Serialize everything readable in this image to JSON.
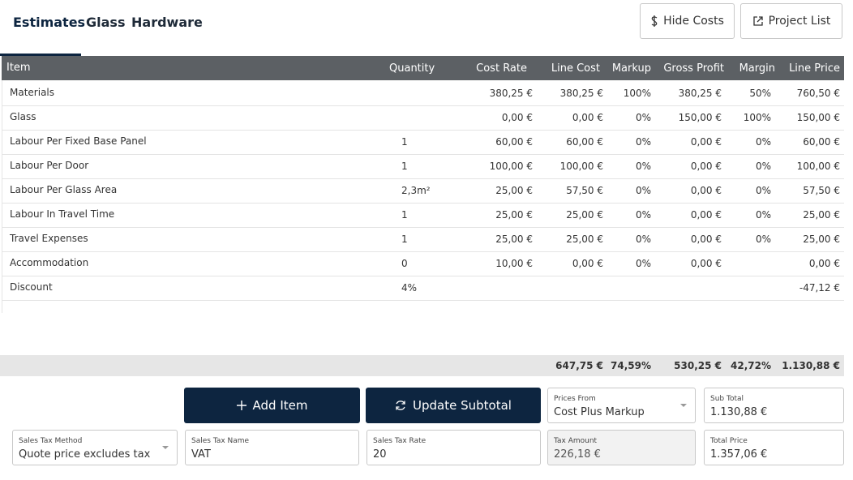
{
  "tabs": [
    "Estimates",
    "Glass",
    "Hardware"
  ],
  "buttons": {
    "hide_costs": "Hide Costs",
    "project_list": "Project List",
    "add_item": "Add Item",
    "update_subtotal": "Update Subtotal"
  },
  "table": {
    "headers": [
      "Item",
      "Quantity",
      "Cost Rate",
      "Line Cost",
      "Markup",
      "Gross Profit",
      "Margin",
      "Line Price"
    ],
    "rows": [
      [
        "Materials",
        null,
        "380,25 €",
        "380,25 €",
        "100%",
        "380,25 €",
        "50%",
        "760,50 €"
      ],
      [
        "Glass",
        null,
        "0,00 €",
        "0,00 €",
        "0%",
        "150,00 €",
        "100%",
        "150,00 €"
      ],
      [
        "Labour Per Fixed Base Panel",
        "1",
        "60,00 €",
        "60,00 €",
        "0%",
        "0,00 €",
        "0%",
        "60,00 €"
      ],
      [
        "Labour Per Door",
        "1",
        "100,00 €",
        "100,00 €",
        "0%",
        "0,00 €",
        "0%",
        "100,00 €"
      ],
      [
        "Labour Per Glass Area",
        "2,3m²",
        "25,00 €",
        "57,50 €",
        "0%",
        "0,00 €",
        "0%",
        "57,50 €"
      ],
      [
        "Labour In Travel Time",
        "1",
        "25,00 €",
        "25,00 €",
        "0%",
        "0,00 €",
        "0%",
        "25,00 €"
      ],
      [
        "Travel Expenses",
        "1",
        "25,00 €",
        "25,00 €",
        "0%",
        "0,00 €",
        "0%",
        "25,00 €"
      ],
      [
        "Accommodation",
        "0",
        "10,00 €",
        "0,00 €",
        "0%",
        "0,00 €",
        null,
        "0,00 €"
      ],
      [
        "Discount",
        "4%",
        null,
        null,
        null,
        null,
        null,
        "-47,12 €"
      ]
    ],
    "totals": [
      null,
      null,
      null,
      "647,75 €",
      "74,59%",
      "530,25 €",
      "42,72%",
      "1.130,88 €"
    ]
  },
  "fields": {
    "prices_from": {
      "label": "Prices From",
      "value": "Cost Plus Markup"
    },
    "sub_total": {
      "label": "Sub Total",
      "value": "1.130,88 €"
    },
    "sales_tax_method": {
      "label": "Sales Tax Method",
      "value": "Quote price excludes tax"
    },
    "sales_tax_name": {
      "label": "Sales Tax Name",
      "value": "VAT"
    },
    "sales_tax_rate": {
      "label": "Sales Tax Rate",
      "value": "20"
    },
    "tax_amount": {
      "label": "Tax Amount",
      "value": "226,18 €"
    },
    "total_price": {
      "label": "Total Price",
      "value": "1.357,06 €"
    }
  }
}
